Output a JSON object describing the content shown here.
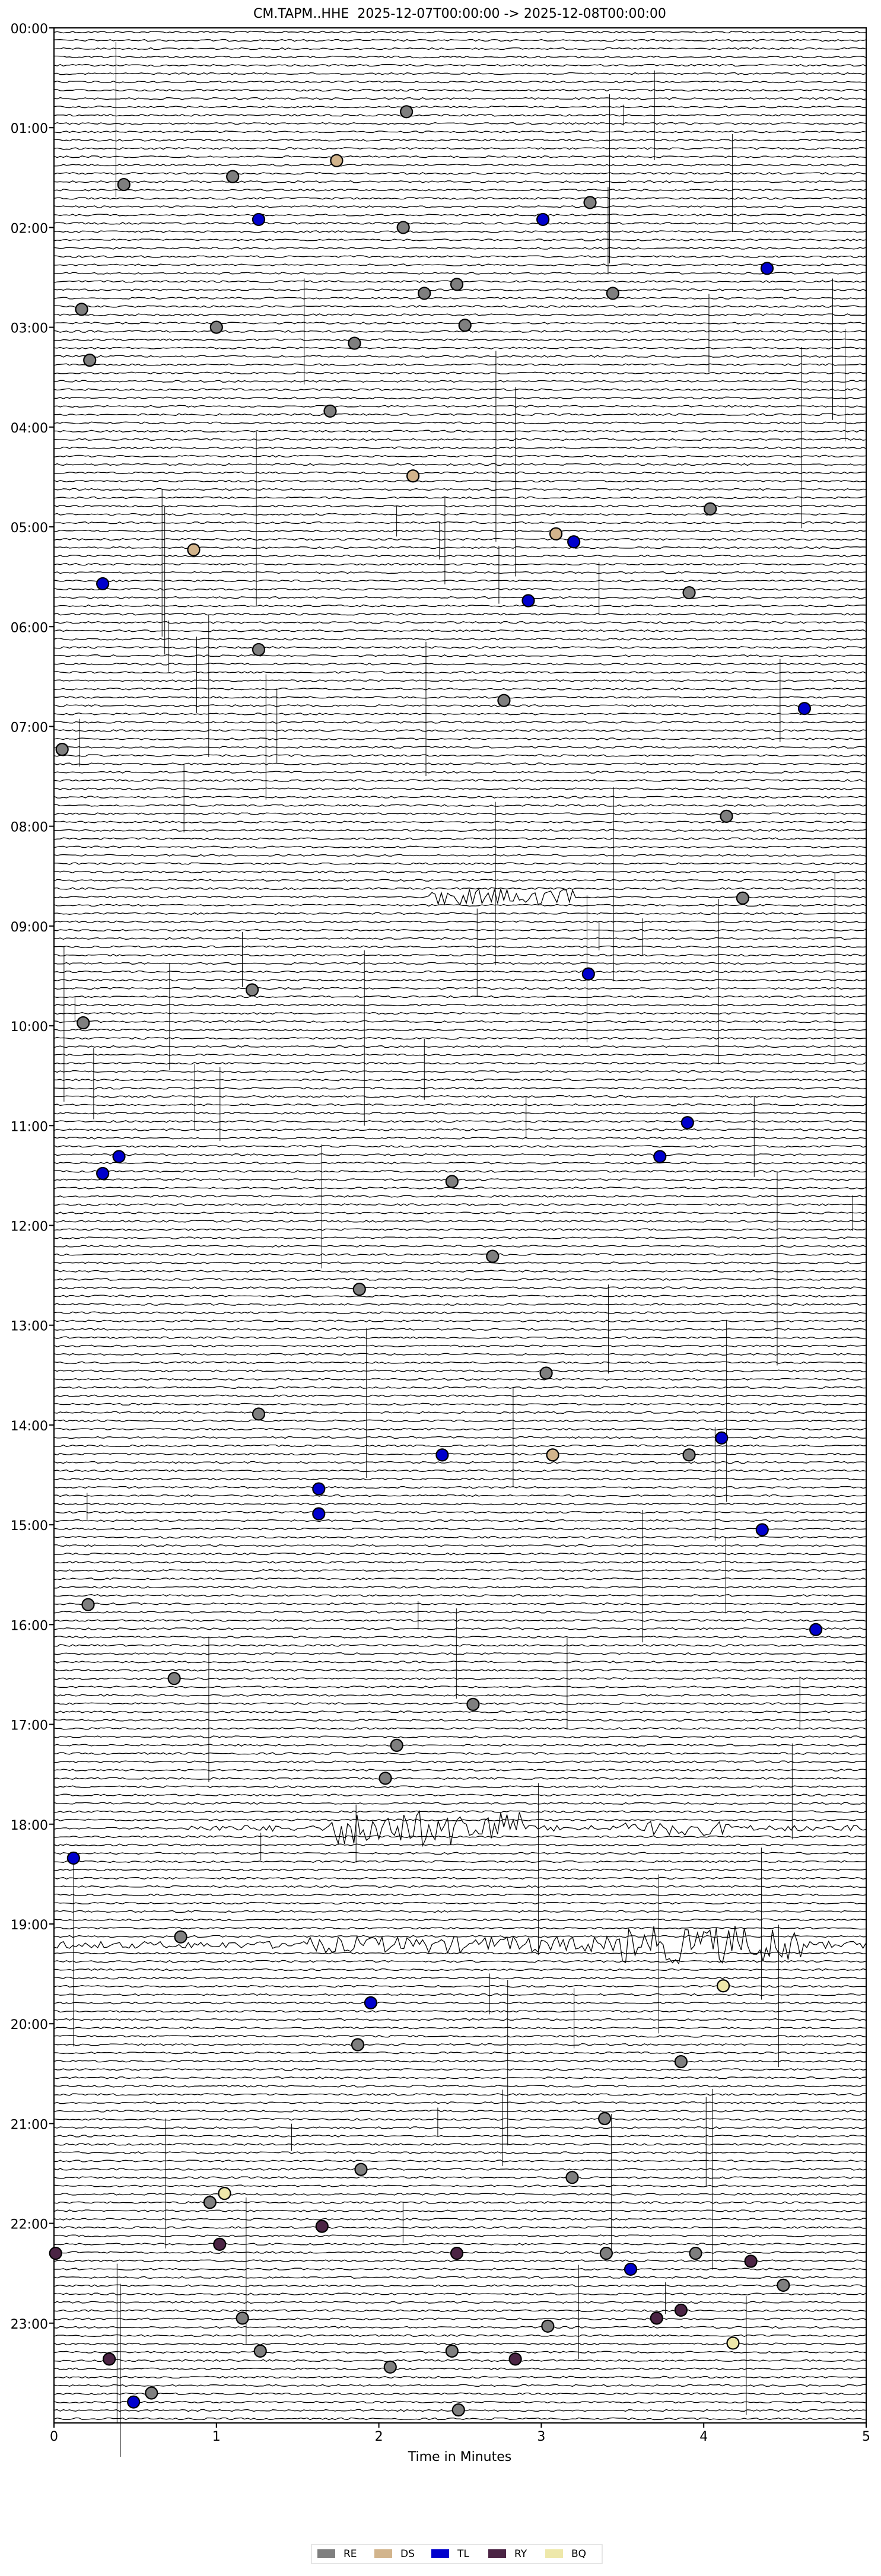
{
  "chart_data": {
    "type": "scatter",
    "title": "CM.TAPM..HHE  2025-12-07T00:00:00 -> 2025-12-08T00:00:00",
    "x_label": "Time in Minutes",
    "xlim": [
      0,
      5
    ],
    "xticks": [
      0,
      1,
      2,
      3,
      4,
      5
    ],
    "ylim": [
      0,
      24
    ],
    "y_inverted": true,
    "yticks": [
      {
        "value": 0,
        "label": "00:00"
      },
      {
        "value": 1,
        "label": "01:00"
      },
      {
        "value": 2,
        "label": "02:00"
      },
      {
        "value": 3,
        "label": "03:00"
      },
      {
        "value": 4,
        "label": "04:00"
      },
      {
        "value": 5,
        "label": "05:00"
      },
      {
        "value": 6,
        "label": "06:00"
      },
      {
        "value": 7,
        "label": "07:00"
      },
      {
        "value": 8,
        "label": "08:00"
      },
      {
        "value": 9,
        "label": "09:00"
      },
      {
        "value": 10,
        "label": "10:00"
      },
      {
        "value": 11,
        "label": "11:00"
      },
      {
        "value": 12,
        "label": "12:00"
      },
      {
        "value": 13,
        "label": "13:00"
      },
      {
        "value": 14,
        "label": "14:00"
      },
      {
        "value": 15,
        "label": "15:00"
      },
      {
        "value": 16,
        "label": "16:00"
      },
      {
        "value": 17,
        "label": "17:00"
      },
      {
        "value": 18,
        "label": "18:00"
      },
      {
        "value": 19,
        "label": "19:00"
      },
      {
        "value": 20,
        "label": "20:00"
      },
      {
        "value": 21,
        "label": "21:00"
      },
      {
        "value": 22,
        "label": "22:00"
      },
      {
        "value": 23,
        "label": "23:00"
      }
    ],
    "legend": "lower center",
    "series": [
      {
        "name": "RE",
        "color": "#7f7f7f",
        "x": [
          2.17,
          0.43,
          1.1,
          2.15,
          3.3,
          2.28,
          2.48,
          3.44,
          0.17,
          1.0,
          1.85,
          0.22,
          1.7,
          4.04,
          3.91,
          1.26,
          2.77,
          0.05,
          4.14,
          4.24,
          1.22,
          0.18,
          2.45,
          2.7,
          1.88,
          3.03,
          1.26,
          3.91,
          0.21,
          0.74,
          2.58,
          2.11,
          2.04,
          0.78,
          1.87,
          3.86,
          3.39,
          1.89,
          3.19,
          0.96,
          3.95,
          3.4,
          1.16,
          2.07,
          2.45,
          1.27,
          3.04,
          0.6,
          2.49,
          4.49,
          2.53
        ],
        "y": [
          0.84,
          1.57,
          1.49,
          2.0,
          1.75,
          2.66,
          2.57,
          2.66,
          2.82,
          3.0,
          3.16,
          3.33,
          3.84,
          4.82,
          5.66,
          6.23,
          6.74,
          7.23,
          7.9,
          8.72,
          9.64,
          9.97,
          11.56,
          12.31,
          12.64,
          13.48,
          13.89,
          14.3,
          15.8,
          16.54,
          16.8,
          17.21,
          17.54,
          19.13,
          20.21,
          20.38,
          20.95,
          21.46,
          21.54,
          21.79,
          22.3,
          22.3,
          22.95,
          23.44,
          23.28,
          23.28,
          23.03,
          23.7,
          23.87,
          22.62,
          2.98
        ]
      },
      {
        "name": "DS",
        "color": "#d2b48c",
        "x": [
          1.74,
          0.86,
          2.21,
          3.07,
          3.09
        ],
        "y": [
          1.33,
          5.23,
          4.49,
          14.3,
          5.07
        ]
      },
      {
        "name": "TL",
        "color": "#0000cd",
        "x": [
          1.26,
          3.01,
          4.39,
          3.2,
          0.3,
          2.92,
          4.62,
          3.29,
          3.9,
          3.73,
          0.4,
          0.3,
          2.39,
          1.63,
          1.63,
          4.11,
          4.36,
          4.69,
          0.12,
          1.95,
          3.55,
          0.49
        ],
        "y": [
          1.92,
          1.92,
          2.41,
          5.15,
          5.57,
          5.74,
          6.82,
          9.48,
          10.97,
          11.31,
          11.31,
          11.48,
          14.3,
          14.64,
          14.89,
          14.13,
          15.05,
          16.05,
          18.34,
          19.79,
          22.46,
          23.79
        ]
      },
      {
        "name": "RY",
        "color": "#4b2444",
        "x": [
          0.01,
          1.02,
          1.65,
          2.48,
          4.29,
          3.86,
          3.71,
          2.84,
          0.34
        ],
        "y": [
          22.3,
          22.21,
          22.03,
          22.3,
          22.38,
          22.87,
          22.95,
          23.36,
          23.36
        ]
      },
      {
        "name": "BQ",
        "color": "#eee8aa",
        "x": [
          4.12,
          4.18,
          1.05
        ],
        "y": [
          19.62,
          23.2,
          21.7
        ]
      }
    ]
  }
}
